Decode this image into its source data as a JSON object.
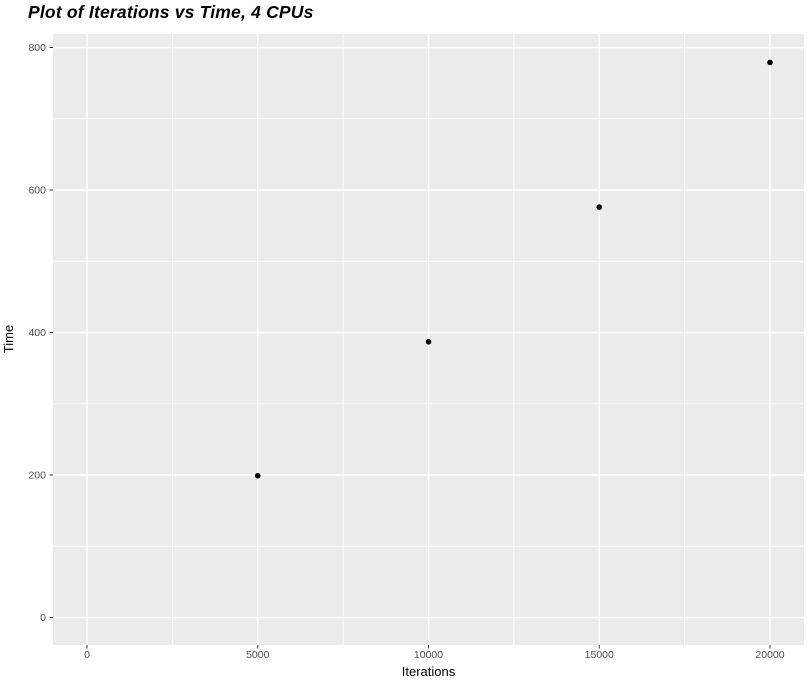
{
  "chart_data": {
    "type": "scatter",
    "title": "Plot of Iterations vs Time, 4 CPUs",
    "xlabel": "Iterations",
    "ylabel": "Time",
    "x": [
      5000,
      10000,
      15000,
      20000
    ],
    "y": [
      199,
      387,
      576,
      779
    ],
    "xlim": [
      0,
      20000
    ],
    "ylim": [
      0,
      800
    ],
    "x_ticks": [
      0,
      5000,
      10000,
      15000,
      20000
    ],
    "x_tick_labels": [
      "0",
      "5000",
      "10000",
      "15000",
      "20000"
    ],
    "y_ticks": [
      0,
      200,
      400,
      600,
      800
    ],
    "y_tick_labels": [
      "0",
      "200",
      "400",
      "600",
      "800"
    ],
    "x_minor_ticks": [
      2500,
      7500,
      12500,
      17500
    ],
    "y_minor_ticks": [
      100,
      300,
      500,
      700
    ],
    "grid": "major+minor",
    "legend": "none",
    "style": "ggplot2-theme-grey",
    "colors": {
      "point": "#000000",
      "panel_background": "#EBEBEB",
      "grid": "#FFFFFF",
      "tick_mark": "#333333",
      "tick_label": "#4D4D4D",
      "axis_title": "#000000",
      "title": "#000000",
      "figure_background": "#FFFFFF"
    }
  }
}
